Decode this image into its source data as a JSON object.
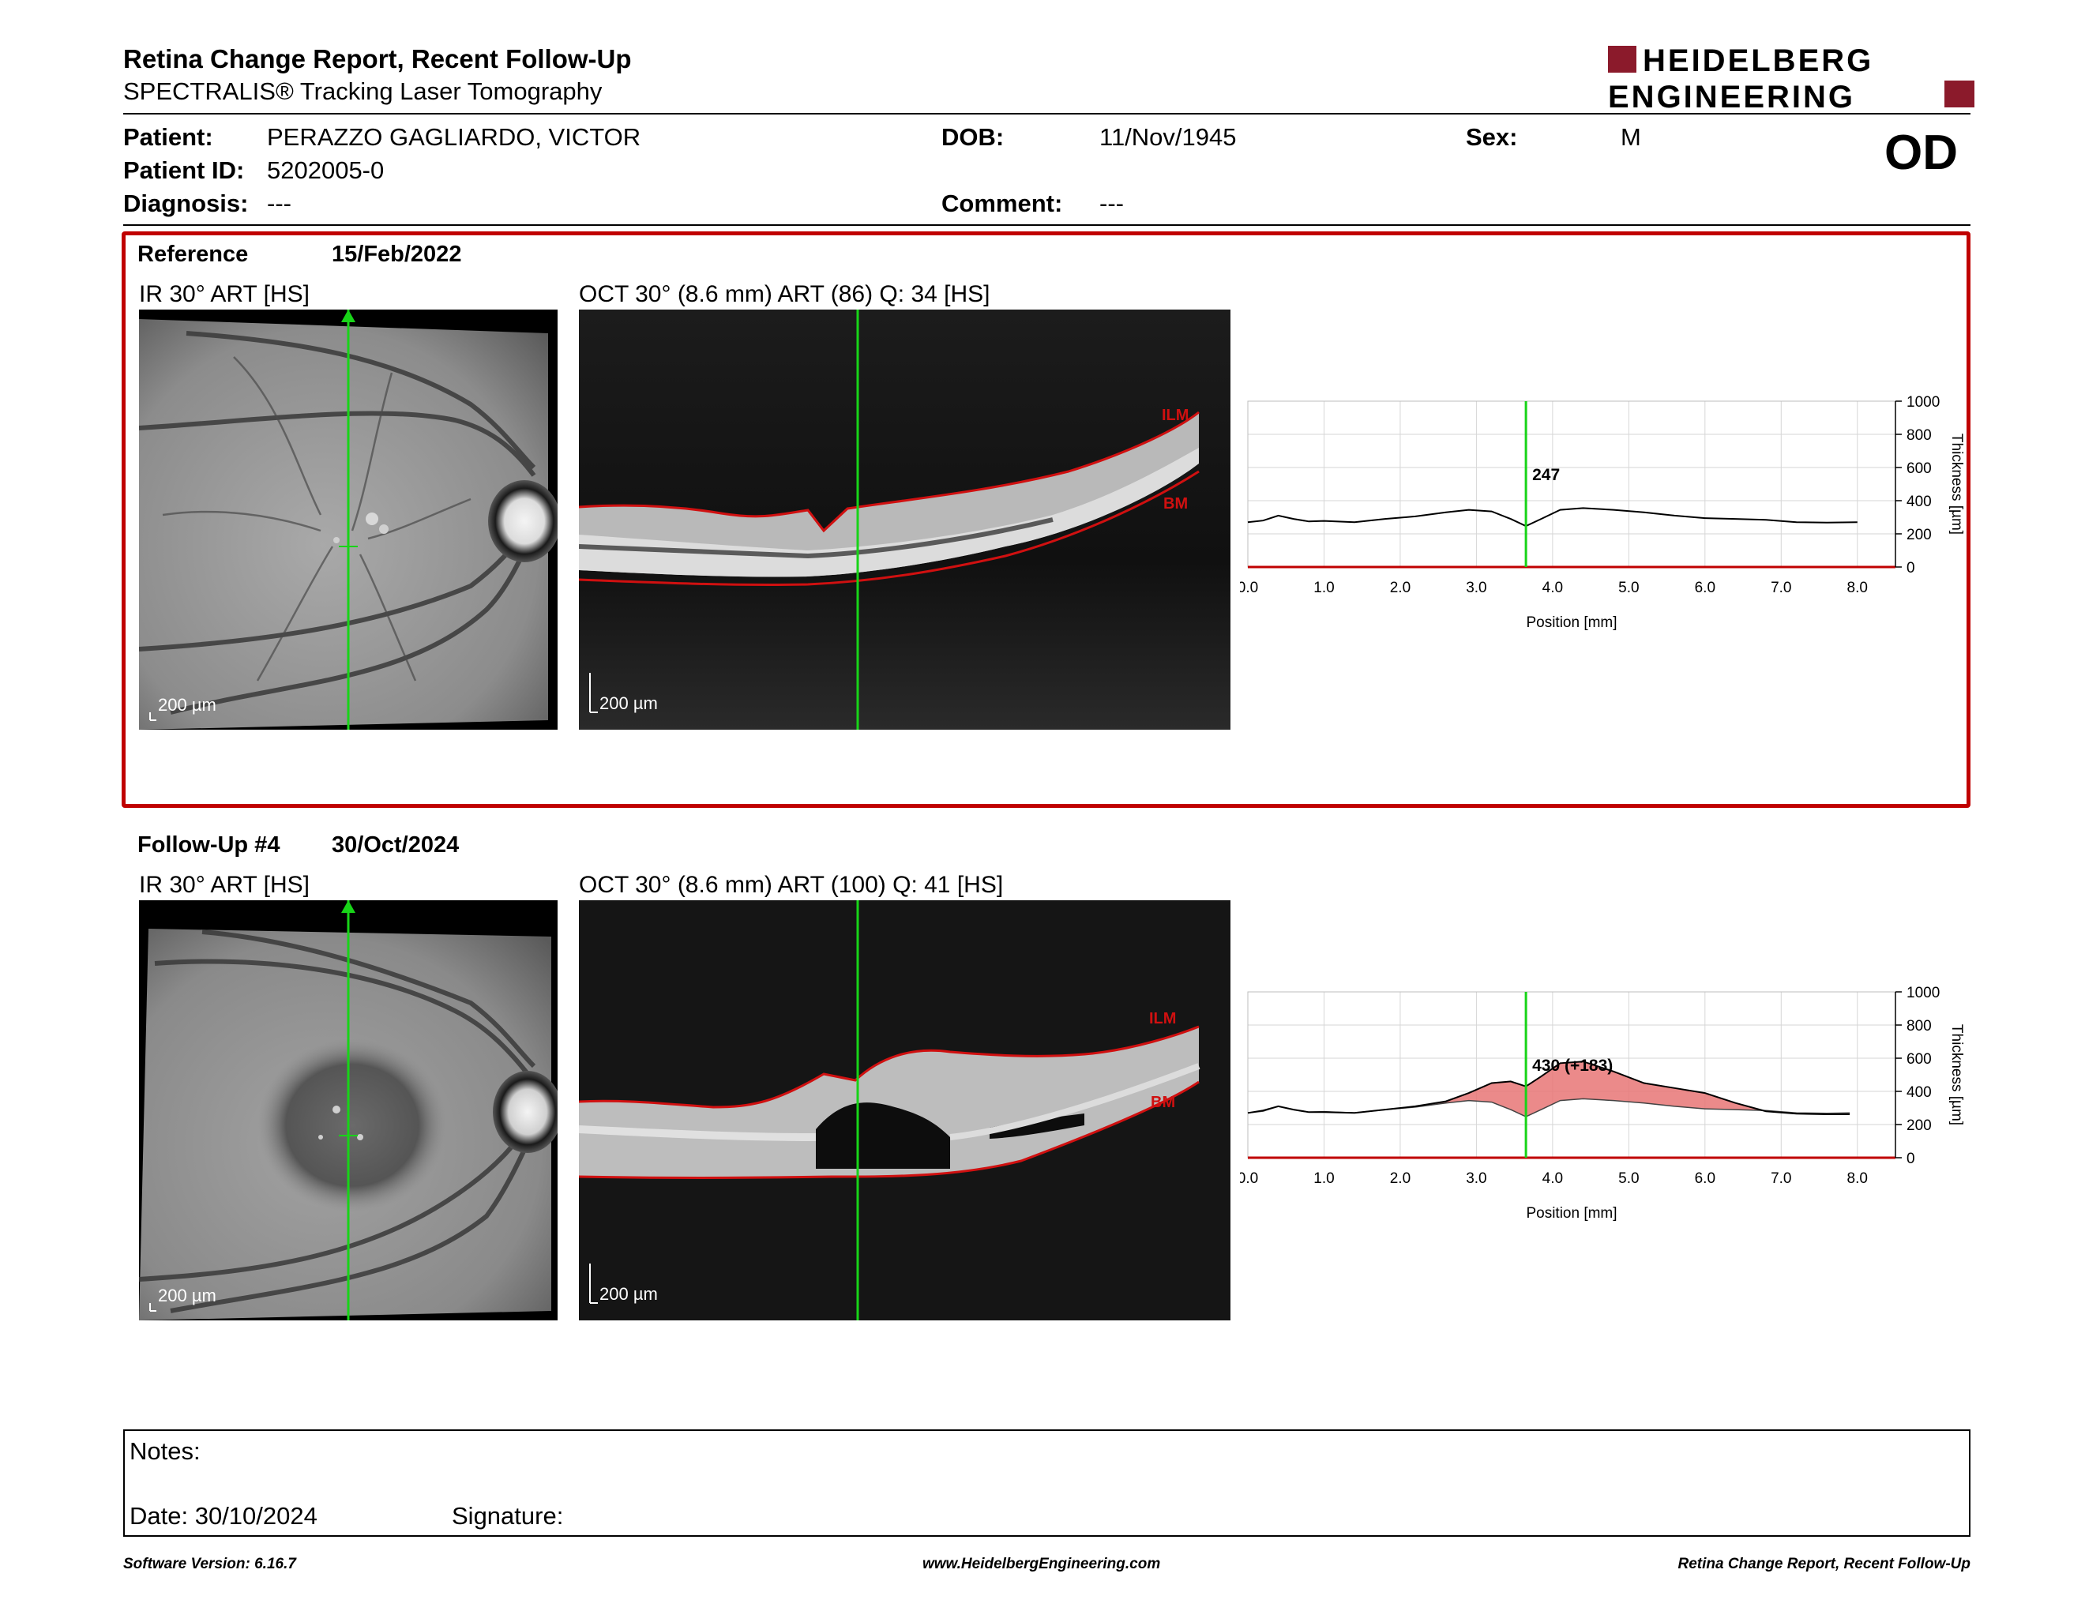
{
  "header": {
    "title": "Retina Change Report, Recent Follow-Up",
    "subtitle": "SPECTRALIS® Tracking Laser Tomography",
    "logo_line1": "HEIDELBERG",
    "logo_line2": "ENGINEERING",
    "brand_color": "#8b1a2b"
  },
  "patient": {
    "patient_label": "Patient:",
    "patient_name": "PERAZZO GAGLIARDO, VICTOR",
    "id_label": "Patient ID:",
    "id_value": "5202005-0",
    "diagnosis_label": "Diagnosis:",
    "diagnosis_value": "---",
    "dob_label": "DOB:",
    "dob_value": "11/Nov/1945",
    "comment_label": "Comment:",
    "comment_value": "---",
    "sex_label": "Sex:",
    "sex_value": "M",
    "eye": "OD"
  },
  "reference": {
    "label": "Reference",
    "date": "15/Feb/2022",
    "ir_caption": "IR 30° ART [HS]",
    "oct_caption": "OCT 30° (8.6 mm) ART (86) Q: 34 [HS]",
    "ir_scale": "200 µm",
    "oct_scale": "200 µm",
    "ilm_label": "ILM",
    "bm_label": "BM",
    "highlight_color": "#c00000"
  },
  "followup": {
    "label": "Follow-Up #4",
    "date": "30/Oct/2024",
    "ir_caption": "IR 30° ART [HS]",
    "oct_caption": "OCT 30° (8.6 mm) ART (100) Q: 41 [HS]",
    "ir_scale": "200 µm",
    "oct_scale": "200 µm",
    "ilm_label": "ILM",
    "bm_label": "BM"
  },
  "chart_data": [
    {
      "type": "line",
      "name": "reference-thickness",
      "xlabel": "Position [mm]",
      "ylabel": "Thickness [µm]",
      "xlim": [
        0,
        8.5
      ],
      "ylim": [
        0,
        1000
      ],
      "x_ticks": [
        "0.0",
        "1.0",
        "2.0",
        "3.0",
        "4.0",
        "5.0",
        "6.0",
        "7.0",
        "8.0"
      ],
      "y_ticks": [
        "1000",
        "800",
        "600",
        "400",
        "200",
        "0"
      ],
      "grid": true,
      "cursor_x": 3.65,
      "cursor_label": "247",
      "series": [
        {
          "values": [
            [
              0,
              270
            ],
            [
              0.2,
              280
            ],
            [
              0.4,
              310
            ],
            [
              0.6,
              290
            ],
            [
              0.8,
              275
            ],
            [
              1.0,
              278
            ],
            [
              1.4,
              270
            ],
            [
              1.8,
              290
            ],
            [
              2.2,
              305
            ],
            [
              2.6,
              330
            ],
            [
              2.9,
              345
            ],
            [
              3.2,
              335
            ],
            [
              3.45,
              290
            ],
            [
              3.65,
              247
            ],
            [
              3.85,
              290
            ],
            [
              4.1,
              345
            ],
            [
              4.4,
              355
            ],
            [
              4.8,
              345
            ],
            [
              5.2,
              330
            ],
            [
              5.6,
              310
            ],
            [
              6.0,
              295
            ],
            [
              6.4,
              290
            ],
            [
              6.8,
              285
            ],
            [
              7.2,
              270
            ],
            [
              7.6,
              268
            ],
            [
              8.0,
              270
            ]
          ]
        }
      ]
    },
    {
      "type": "area",
      "name": "followup-thickness",
      "xlabel": "Position [mm]",
      "ylabel": "Thickness [µm]",
      "xlim": [
        0,
        8.5
      ],
      "ylim": [
        0,
        1000
      ],
      "x_ticks": [
        "0.0",
        "1.0",
        "2.0",
        "3.0",
        "4.0",
        "5.0",
        "6.0",
        "7.0",
        "8.0"
      ],
      "y_ticks": [
        "1000",
        "800",
        "600",
        "400",
        "200",
        "0"
      ],
      "grid": true,
      "cursor_x": 3.65,
      "cursor_label": "430 (+183)",
      "fill_color": "#e77575",
      "series": [
        {
          "name": "Follow-Up #4",
          "values": [
            [
              0,
              270
            ],
            [
              0.2,
              285
            ],
            [
              0.4,
              310
            ],
            [
              0.6,
              290
            ],
            [
              0.8,
              275
            ],
            [
              1.0,
              275
            ],
            [
              1.4,
              270
            ],
            [
              1.8,
              290
            ],
            [
              2.2,
              310
            ],
            [
              2.6,
              340
            ],
            [
              2.9,
              390
            ],
            [
              3.2,
              450
            ],
            [
              3.45,
              460
            ],
            [
              3.65,
              430
            ],
            [
              3.85,
              490
            ],
            [
              4.1,
              570
            ],
            [
              4.4,
              580
            ],
            [
              4.8,
              520
            ],
            [
              5.2,
              450
            ],
            [
              5.6,
              420
            ],
            [
              6.0,
              390
            ],
            [
              6.4,
              330
            ],
            [
              6.8,
              280
            ],
            [
              7.2,
              265
            ],
            [
              7.6,
              262
            ],
            [
              7.9,
              262
            ]
          ]
        },
        {
          "name": "Reference",
          "values": [
            [
              0,
              270
            ],
            [
              0.2,
              280
            ],
            [
              0.4,
              310
            ],
            [
              0.6,
              290
            ],
            [
              0.8,
              275
            ],
            [
              1.0,
              278
            ],
            [
              1.4,
              270
            ],
            [
              1.8,
              290
            ],
            [
              2.2,
              305
            ],
            [
              2.6,
              330
            ],
            [
              2.9,
              345
            ],
            [
              3.2,
              335
            ],
            [
              3.45,
              290
            ],
            [
              3.65,
              247
            ],
            [
              3.85,
              290
            ],
            [
              4.1,
              345
            ],
            [
              4.4,
              355
            ],
            [
              4.8,
              345
            ],
            [
              5.2,
              330
            ],
            [
              5.6,
              310
            ],
            [
              6.0,
              295
            ],
            [
              6.4,
              290
            ],
            [
              6.8,
              285
            ],
            [
              7.2,
              270
            ],
            [
              7.6,
              268
            ],
            [
              7.9,
              270
            ]
          ]
        }
      ]
    }
  ],
  "notes": {
    "notes_label": "Notes:",
    "date_label": "Date: 30/10/2024",
    "signature_label": "Signature:"
  },
  "footer": {
    "software": "Software Version: 6.16.7",
    "website": "www.HeidelbergEngineering.com",
    "report": "Retina Change Report, Recent Follow-Up"
  }
}
